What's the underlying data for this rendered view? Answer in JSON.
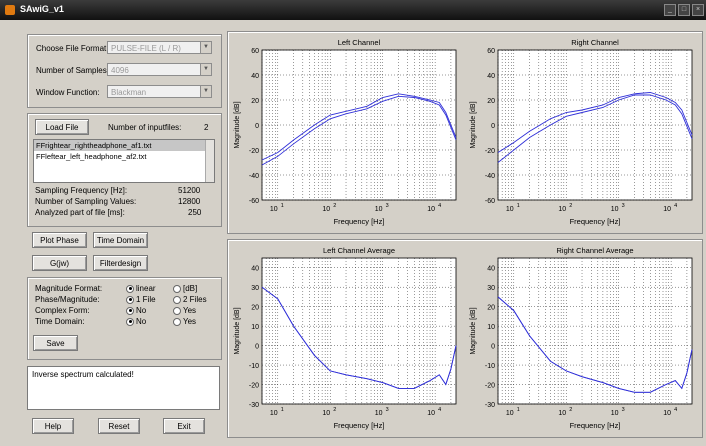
{
  "window": {
    "title": "SAwiG_v1",
    "title_buttons": [
      "_",
      "□",
      "×"
    ]
  },
  "settings": {
    "file_format_label": "Choose File Format:",
    "file_format_value": "PULSE-FILE (L / R)",
    "samples_label": "Number of Samples:",
    "samples_value": "4096",
    "window_label": "Window Function:",
    "window_value": "Blackman"
  },
  "file_panel": {
    "load_button": "Load File",
    "inputfiles_label": "Number of inputfiles:",
    "inputfiles_value": "2",
    "files": [
      "FFrightear_rightheadphone_af1.txt",
      "FFleftear_left_headphone_af2.txt"
    ],
    "sampling_freq_label": "Sampling Frequency [Hz]:",
    "sampling_freq_value": "51200",
    "sampling_values_label": "Number of Sampling Values:",
    "sampling_values_value": "12800",
    "analyzed_label": "Analyzed part of file [ms]:",
    "analyzed_value": "250"
  },
  "buttons": {
    "plot_phase": "Plot Phase",
    "time_domain": "Time Domain",
    "g_omega": "G(jw)",
    "filterdesign": "Filterdesign",
    "save": "Save",
    "help": "Help",
    "reset": "Reset",
    "exit": "Exit"
  },
  "options": {
    "magnitude_format_label": "Magnitude Format:",
    "magnitude_opt1": "linear",
    "magnitude_opt2": "[dB]",
    "phase_label": "Phase/Magnitude:",
    "phase_opt1": "1 File",
    "phase_opt2": "2 Files",
    "complex_label": "Complex Form:",
    "complex_opt1": "No",
    "complex_opt2": "Yes",
    "time_label": "Time Domain:",
    "time_opt1": "No",
    "time_opt2": "Yes"
  },
  "status_message": "Inverse spectrum calculated!",
  "colors": {
    "series": "#3030d8",
    "plot_bg": "#ffffff",
    "window_bg": "#d4d0c8"
  },
  "chart_data": [
    {
      "type": "line",
      "title": "Left Channel",
      "xlabel": "Frequency [Hz]",
      "ylabel": "Magnitude [dB]",
      "x_scale": "log",
      "xlim": [
        5,
        25000
      ],
      "ylim": [
        -60,
        60
      ],
      "y_ticks": [
        "60",
        "40",
        "20",
        "0",
        "-20",
        "-40",
        "-60"
      ],
      "x_ticks": [
        "10",
        "10",
        "10",
        "10"
      ],
      "x_tick_exponents": [
        "1",
        "2",
        "3",
        "4"
      ],
      "grid": true,
      "series": [
        {
          "x": [
            5,
            10,
            20,
            50,
            100,
            200,
            500,
            1000,
            2000,
            4000,
            8000,
            12000,
            16000,
            20000,
            25000
          ],
          "values": [
            -28,
            -22,
            -12,
            0,
            8,
            11,
            15,
            22,
            25,
            23,
            20,
            18,
            10,
            0,
            -10
          ]
        },
        {
          "x": [
            5,
            10,
            20,
            50,
            100,
            200,
            500,
            1000,
            2000,
            4000,
            8000,
            12000,
            16000,
            20000,
            25000
          ],
          "values": [
            -32,
            -25,
            -15,
            -3,
            5,
            9,
            13,
            19,
            23,
            22,
            19,
            16,
            8,
            -2,
            -12
          ]
        }
      ]
    },
    {
      "type": "line",
      "title": "Right Channel",
      "xlabel": "Frequency [Hz]",
      "ylabel": "Magnitude [dB]",
      "x_scale": "log",
      "xlim": [
        5,
        25000
      ],
      "ylim": [
        -60,
        60
      ],
      "y_ticks": [
        "60",
        "40",
        "20",
        "0",
        "-20",
        "-40",
        "-60"
      ],
      "x_ticks": [
        "10",
        "10",
        "10",
        "10"
      ],
      "x_tick_exponents": [
        "1",
        "2",
        "3",
        "4"
      ],
      "grid": true,
      "series": [
        {
          "x": [
            5,
            10,
            20,
            50,
            100,
            200,
            500,
            1000,
            2000,
            4000,
            8000,
            12000,
            16000,
            20000,
            25000
          ],
          "values": [
            -22,
            -14,
            -5,
            5,
            10,
            12,
            16,
            22,
            25,
            26,
            22,
            18,
            12,
            2,
            -8
          ]
        },
        {
          "x": [
            5,
            10,
            20,
            50,
            100,
            200,
            500,
            1000,
            2000,
            4000,
            8000,
            12000,
            16000,
            20000,
            25000
          ],
          "values": [
            -30,
            -20,
            -10,
            0,
            7,
            10,
            14,
            20,
            24,
            24,
            20,
            16,
            9,
            -1,
            -11
          ]
        }
      ]
    },
    {
      "type": "line",
      "title": "Left Channel Average",
      "xlabel": "Frequency [Hz]",
      "ylabel": "Magnitude [dB]",
      "x_scale": "log",
      "xlim": [
        5,
        25000
      ],
      "ylim": [
        -30,
        45
      ],
      "y_ticks": [
        "40",
        "30",
        "20",
        "10",
        "0",
        "-10",
        "-20",
        "-30"
      ],
      "x_ticks": [
        "10",
        "10",
        "10",
        "10"
      ],
      "x_tick_exponents": [
        "1",
        "2",
        "3",
        "4"
      ],
      "grid": true,
      "series": [
        {
          "x": [
            5,
            10,
            20,
            50,
            100,
            200,
            500,
            1000,
            2000,
            4000,
            8000,
            12000,
            16000,
            20000,
            25000
          ],
          "values": [
            30,
            24,
            10,
            -5,
            -13,
            -15,
            -17,
            -19,
            -22,
            -22,
            -18,
            -15,
            -20,
            -12,
            0
          ]
        },
        {
          "x": [
            5,
            10,
            20,
            50,
            100,
            200,
            500,
            1000,
            2000,
            4000,
            8000,
            12000,
            16000,
            20000,
            25000
          ],
          "values": [
            30,
            24,
            10,
            -5,
            -13,
            -15,
            -17,
            -19,
            -22,
            -22,
            -18,
            -15,
            -20,
            -12,
            0
          ]
        }
      ]
    },
    {
      "type": "line",
      "title": "Right Channel Average",
      "xlabel": "Frequency [Hz]",
      "ylabel": "Magnitude [dB]",
      "x_scale": "log",
      "xlim": [
        5,
        25000
      ],
      "ylim": [
        -30,
        45
      ],
      "y_ticks": [
        "40",
        "30",
        "20",
        "10",
        "0",
        "-10",
        "-20",
        "-30"
      ],
      "x_ticks": [
        "10",
        "10",
        "10",
        "10"
      ],
      "x_tick_exponents": [
        "1",
        "2",
        "3",
        "4"
      ],
      "grid": true,
      "series": [
        {
          "x": [
            5,
            10,
            20,
            50,
            100,
            200,
            500,
            1000,
            2000,
            4000,
            8000,
            12000,
            16000,
            20000,
            25000
          ],
          "values": [
            25,
            18,
            5,
            -8,
            -13,
            -16,
            -19,
            -22,
            -24,
            -24,
            -20,
            -18,
            -22,
            -14,
            -2
          ]
        },
        {
          "x": [
            5,
            10,
            20,
            50,
            100,
            200,
            500,
            1000,
            2000,
            4000,
            8000,
            12000,
            16000,
            20000,
            25000
          ],
          "values": [
            25,
            18,
            5,
            -8,
            -13,
            -16,
            -19,
            -22,
            -24,
            -24,
            -20,
            -18,
            -22,
            -14,
            -2
          ]
        }
      ]
    }
  ]
}
